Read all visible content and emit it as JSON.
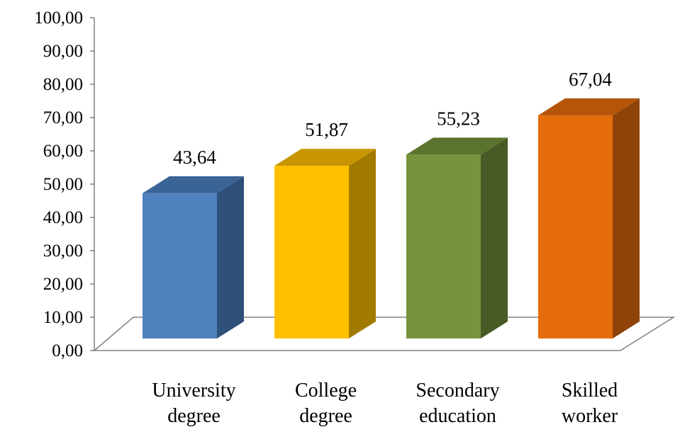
{
  "chart_data": {
    "type": "bar",
    "style": "3d-column",
    "categories": [
      [
        "University",
        "degree"
      ],
      [
        "College",
        "degree"
      ],
      [
        "Secondary",
        "education"
      ],
      [
        "Skilled",
        "worker"
      ]
    ],
    "values": [
      43.64,
      51.87,
      55.23,
      67.04
    ],
    "value_labels": [
      "43,64",
      "51,87",
      "55,23",
      "67,04"
    ],
    "y_ticks": [
      "0,00",
      "10,00",
      "20,00",
      "30,00",
      "40,00",
      "50,00",
      "60,00",
      "70,00",
      "80,00",
      "90,00",
      "100,00"
    ],
    "ylim": [
      0,
      100
    ],
    "title": "",
    "xlabel": "",
    "ylabel": "",
    "grid": false,
    "legend": "none",
    "colors": {
      "front": [
        "#4f81bd",
        "#ffc000",
        "#77933c",
        "#e46c0a"
      ],
      "top": [
        "#3b6496",
        "#c89600",
        "#5c732e",
        "#b5550a"
      ],
      "side": [
        "#2f5078",
        "#a37a00",
        "#485a25",
        "#8f4308"
      ],
      "axis": "#808080"
    }
  }
}
